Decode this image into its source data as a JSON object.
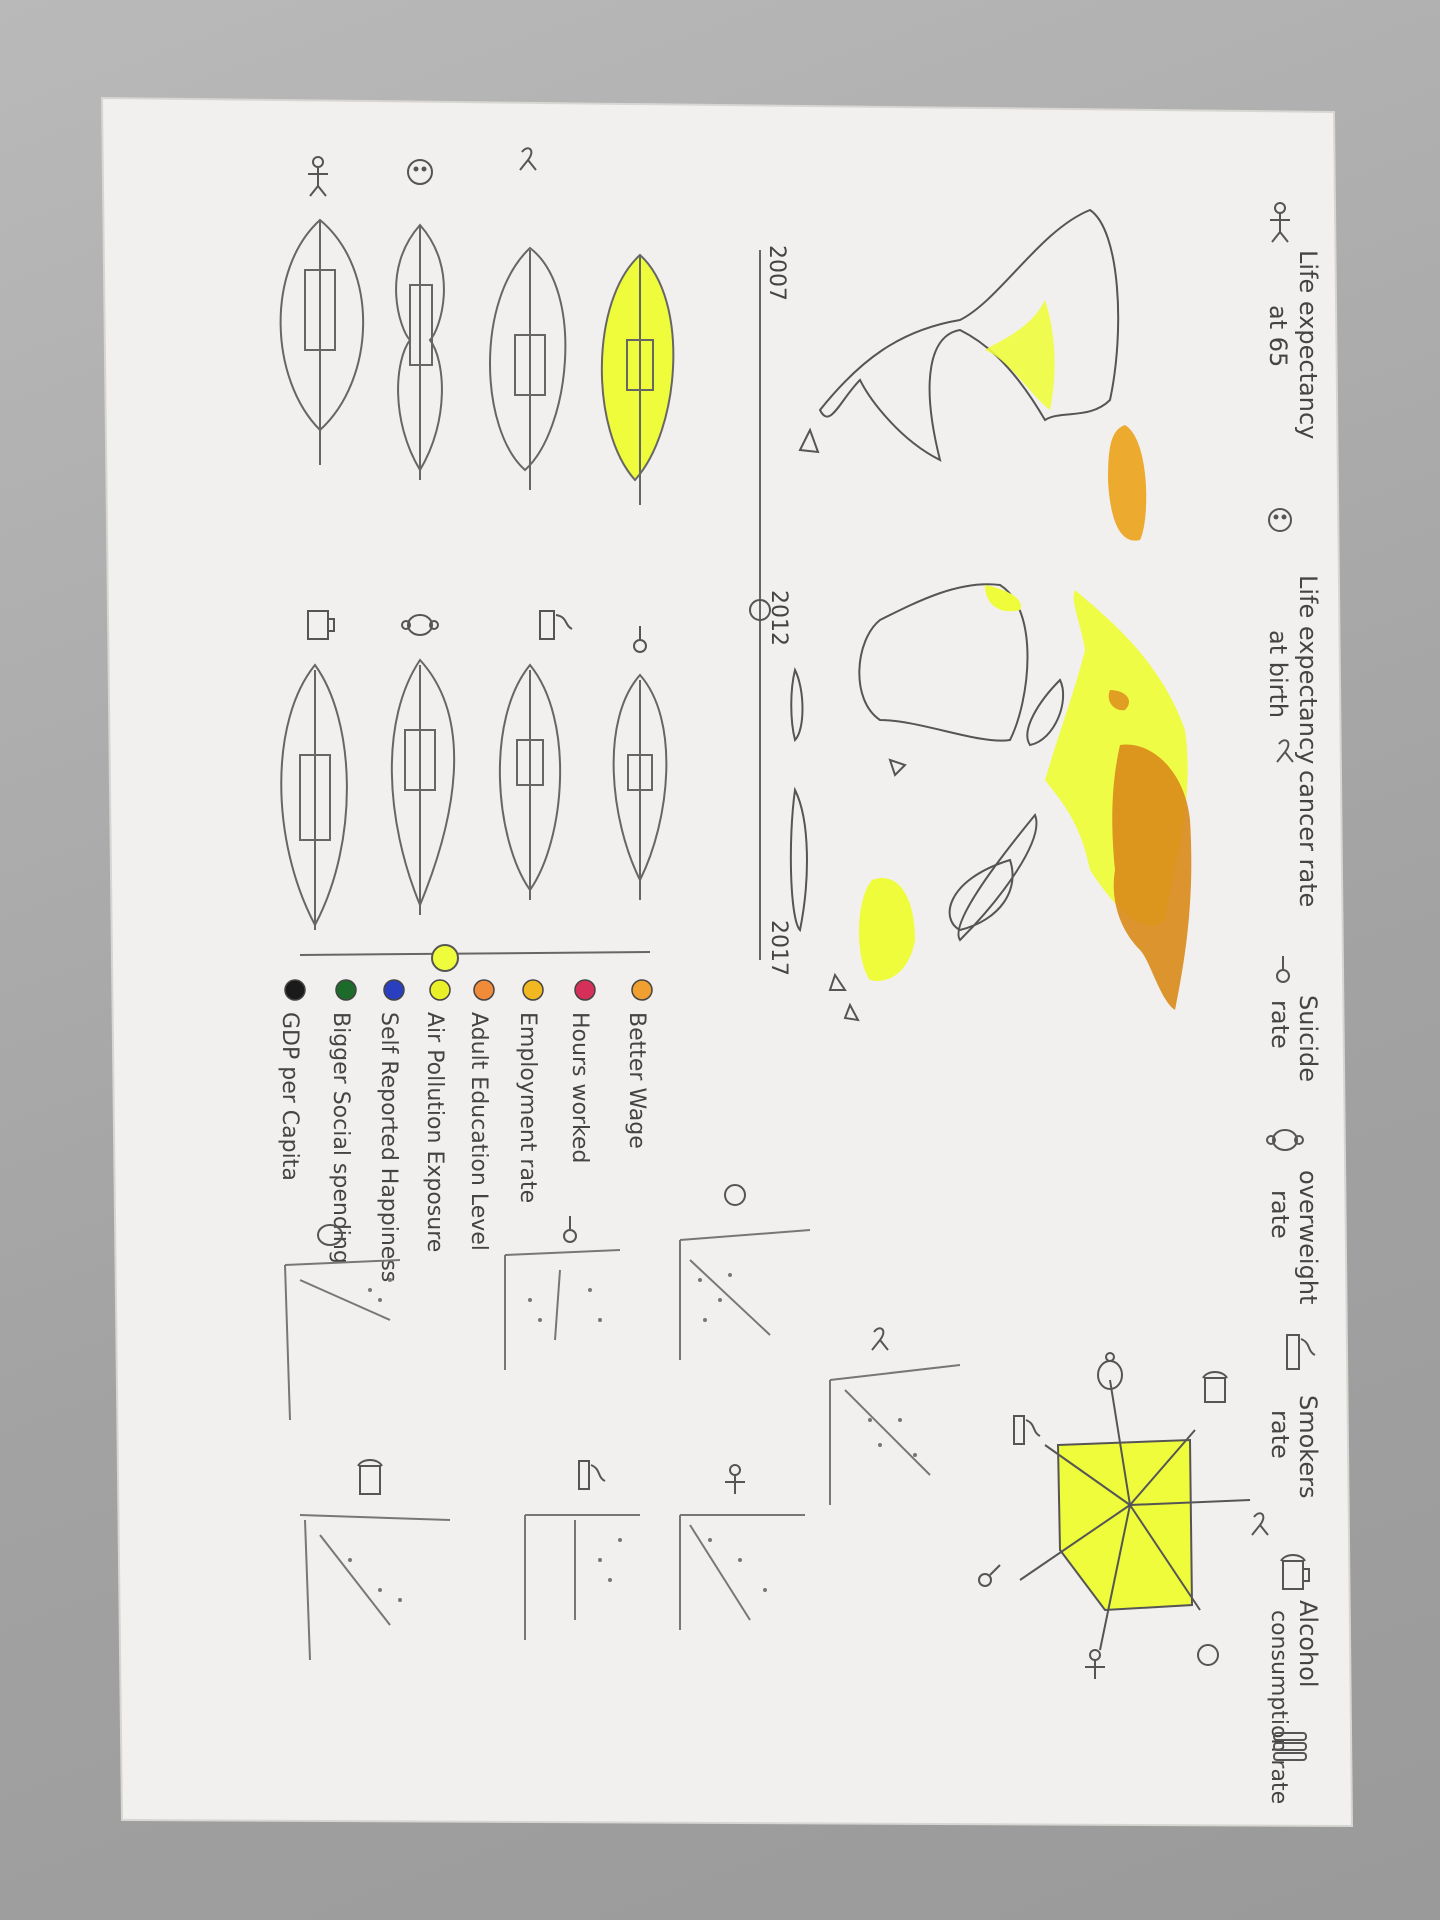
{
  "indicators": [
    {
      "icon": "stick-figure-icon",
      "label_line1": "Life expectancy",
      "label_line2": "at 65"
    },
    {
      "icon": "baby-icon",
      "label_line1": "Life expectancy",
      "label_line2": "at birth"
    },
    {
      "icon": "ribbon-icon",
      "label_line1": "cancer rate",
      "label_line2": ""
    },
    {
      "icon": "hanging-rope-icon",
      "label_line1": "Suicide",
      "label_line2": "rate"
    },
    {
      "icon": "overweight-figure-icon",
      "label_line1": "overweight",
      "label_line2": "rate"
    },
    {
      "icon": "cigarette-icon",
      "label_line1": "Smokers",
      "label_line2": "rate"
    },
    {
      "icon": "beer-mug-icon",
      "label_line1": "Alcohol",
      "label_line2": "consumption rate"
    }
  ],
  "timeline": {
    "start": "2007",
    "middle": "2012",
    "end": "2017"
  },
  "legend": [
    {
      "label": "Better Wage",
      "color": "#f0a030"
    },
    {
      "label": "Hours worked",
      "color": "#d6305a"
    },
    {
      "label": "Employment rate",
      "color": "#f2b822"
    },
    {
      "label": "Adult Education Level",
      "color": "#f08b3a"
    },
    {
      "label": "Air Pollution Exposure",
      "color": "#e9f02a"
    },
    {
      "label": "Self Reported Happiness",
      "color": "#2a3fc0"
    },
    {
      "label": "Bigger Social spending",
      "color": "#1c6b2a"
    },
    {
      "label": "GDP per Capita",
      "color": "#1a1a1a"
    }
  ],
  "colors": {
    "highlight": "#eefc3c",
    "orange": "#e08f1c",
    "pencil": "#555555",
    "paper": "#f2f0ee"
  }
}
